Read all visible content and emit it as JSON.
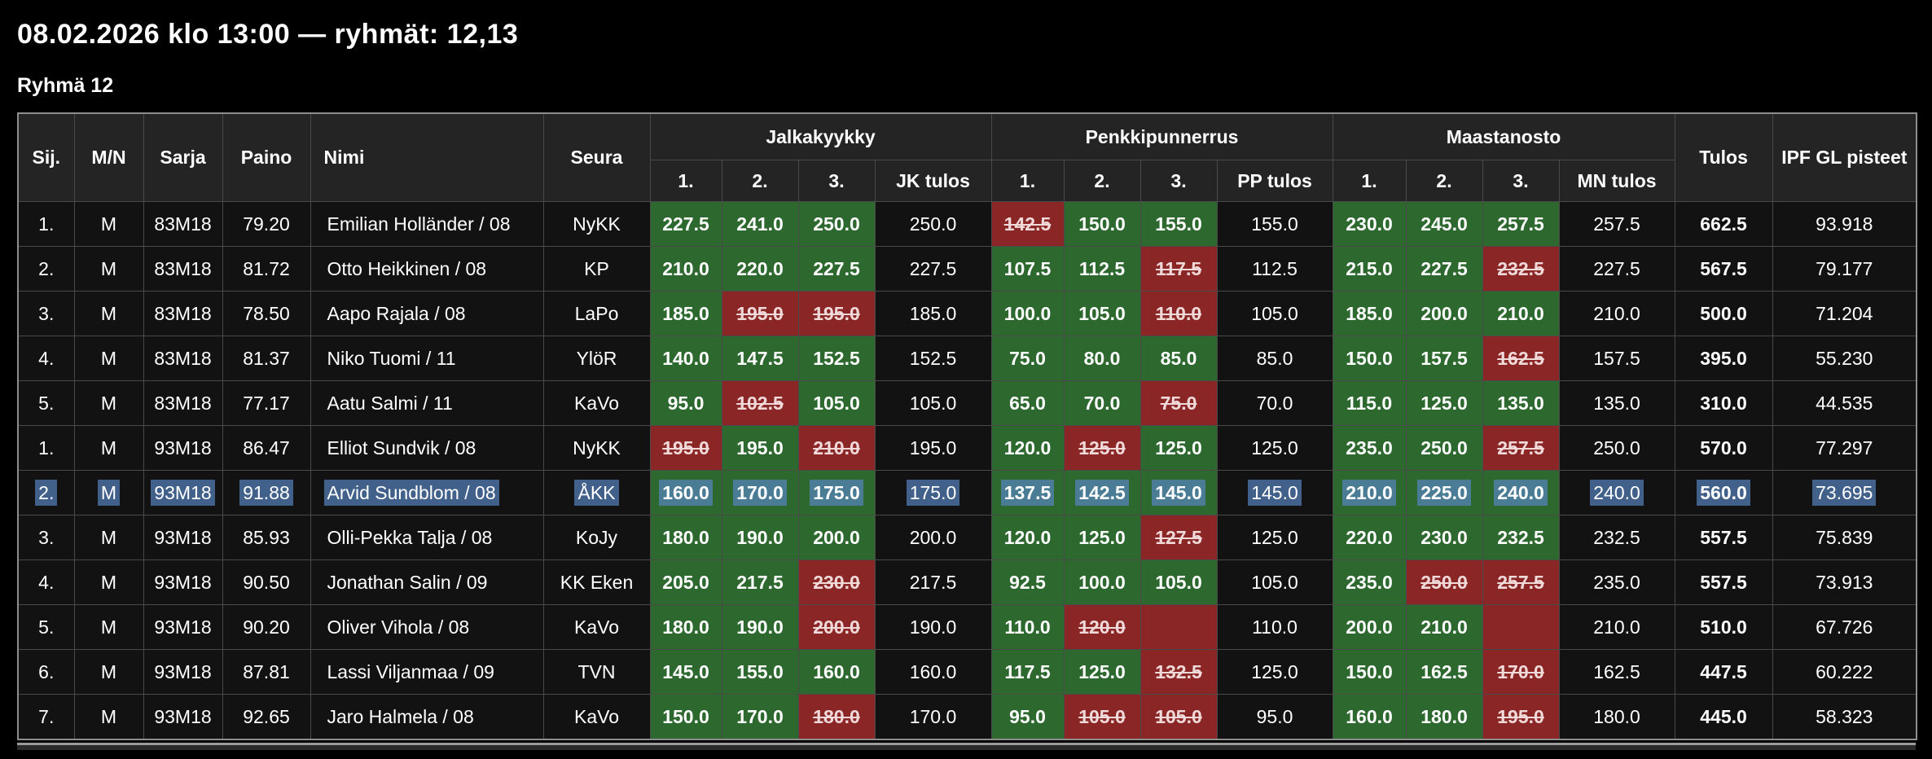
{
  "page": {
    "title_line": "08.02.2026 klo 13:00 — ryhmät: 12,13",
    "group_title": "Ryhmä 12"
  },
  "colors": {
    "good_lift": "#2d682f",
    "failed_lift": "#8b2626",
    "selection_highlight": "#5886c6",
    "header_bg": "#242424",
    "row_bg": "#121212",
    "page_bg": "#000000"
  },
  "table": {
    "groups": {
      "squat": "Jalkakyykky",
      "bench": "Penkkipunnerrus",
      "deadlift": "Maastanosto"
    },
    "headers": {
      "sij": "Sij.",
      "mn": "M/N",
      "sarja": "Sarja",
      "paino": "Paino",
      "nimi": "Nimi",
      "seura": "Seura",
      "a1": "1.",
      "a2": "2.",
      "a3": "3.",
      "jk_result": "JK tulos",
      "pp_result": "PP tulos",
      "mn_result": "MN tulos",
      "tulos": "Tulos",
      "ipf": "IPF GL pisteet"
    },
    "rows": [
      {
        "sij": "1.",
        "gender": "M",
        "sarja": "83M18",
        "paino": "79.20",
        "nimi": "Emilian Holländer / 08",
        "seura": "NyKK",
        "selected": false,
        "squat": {
          "attempts": [
            {
              "v": "227.5",
              "ok": true
            },
            {
              "v": "241.0",
              "ok": true
            },
            {
              "v": "250.0",
              "ok": true
            }
          ],
          "result": "250.0"
        },
        "bench": {
          "attempts": [
            {
              "v": "142.5",
              "ok": false
            },
            {
              "v": "150.0",
              "ok": true
            },
            {
              "v": "155.0",
              "ok": true
            }
          ],
          "result": "155.0"
        },
        "deadlift": {
          "attempts": [
            {
              "v": "230.0",
              "ok": true
            },
            {
              "v": "245.0",
              "ok": true
            },
            {
              "v": "257.5",
              "ok": true
            }
          ],
          "result": "257.5"
        },
        "tulos": "662.5",
        "ipf": "93.918"
      },
      {
        "sij": "2.",
        "gender": "M",
        "sarja": "83M18",
        "paino": "81.72",
        "nimi": "Otto Heikkinen / 08",
        "seura": "KP",
        "selected": false,
        "squat": {
          "attempts": [
            {
              "v": "210.0",
              "ok": true
            },
            {
              "v": "220.0",
              "ok": true
            },
            {
              "v": "227.5",
              "ok": true
            }
          ],
          "result": "227.5"
        },
        "bench": {
          "attempts": [
            {
              "v": "107.5",
              "ok": true
            },
            {
              "v": "112.5",
              "ok": true
            },
            {
              "v": "117.5",
              "ok": false
            }
          ],
          "result": "112.5"
        },
        "deadlift": {
          "attempts": [
            {
              "v": "215.0",
              "ok": true
            },
            {
              "v": "227.5",
              "ok": true
            },
            {
              "v": "232.5",
              "ok": false
            }
          ],
          "result": "227.5"
        },
        "tulos": "567.5",
        "ipf": "79.177"
      },
      {
        "sij": "3.",
        "gender": "M",
        "sarja": "83M18",
        "paino": "78.50",
        "nimi": "Aapo Rajala / 08",
        "seura": "LaPo",
        "selected": false,
        "squat": {
          "attempts": [
            {
              "v": "185.0",
              "ok": true
            },
            {
              "v": "195.0",
              "ok": false
            },
            {
              "v": "195.0",
              "ok": false
            }
          ],
          "result": "185.0"
        },
        "bench": {
          "attempts": [
            {
              "v": "100.0",
              "ok": true
            },
            {
              "v": "105.0",
              "ok": true
            },
            {
              "v": "110.0",
              "ok": false
            }
          ],
          "result": "105.0"
        },
        "deadlift": {
          "attempts": [
            {
              "v": "185.0",
              "ok": true
            },
            {
              "v": "200.0",
              "ok": true
            },
            {
              "v": "210.0",
              "ok": true
            }
          ],
          "result": "210.0"
        },
        "tulos": "500.0",
        "ipf": "71.204"
      },
      {
        "sij": "4.",
        "gender": "M",
        "sarja": "83M18",
        "paino": "81.37",
        "nimi": "Niko Tuomi / 11",
        "seura": "YlöR",
        "selected": false,
        "squat": {
          "attempts": [
            {
              "v": "140.0",
              "ok": true
            },
            {
              "v": "147.5",
              "ok": true
            },
            {
              "v": "152.5",
              "ok": true
            }
          ],
          "result": "152.5"
        },
        "bench": {
          "attempts": [
            {
              "v": "75.0",
              "ok": true
            },
            {
              "v": "80.0",
              "ok": true
            },
            {
              "v": "85.0",
              "ok": true
            }
          ],
          "result": "85.0"
        },
        "deadlift": {
          "attempts": [
            {
              "v": "150.0",
              "ok": true
            },
            {
              "v": "157.5",
              "ok": true
            },
            {
              "v": "162.5",
              "ok": false
            }
          ],
          "result": "157.5"
        },
        "tulos": "395.0",
        "ipf": "55.230"
      },
      {
        "sij": "5.",
        "gender": "M",
        "sarja": "83M18",
        "paino": "77.17",
        "nimi": "Aatu Salmi / 11",
        "seura": "KaVo",
        "selected": false,
        "squat": {
          "attempts": [
            {
              "v": "95.0",
              "ok": true
            },
            {
              "v": "102.5",
              "ok": false
            },
            {
              "v": "105.0",
              "ok": true
            }
          ],
          "result": "105.0"
        },
        "bench": {
          "attempts": [
            {
              "v": "65.0",
              "ok": true
            },
            {
              "v": "70.0",
              "ok": true
            },
            {
              "v": "75.0",
              "ok": false
            }
          ],
          "result": "70.0"
        },
        "deadlift": {
          "attempts": [
            {
              "v": "115.0",
              "ok": true
            },
            {
              "v": "125.0",
              "ok": true
            },
            {
              "v": "135.0",
              "ok": true
            }
          ],
          "result": "135.0"
        },
        "tulos": "310.0",
        "ipf": "44.535"
      },
      {
        "sij": "1.",
        "gender": "M",
        "sarja": "93M18",
        "paino": "86.47",
        "nimi": "Elliot Sundvik / 08",
        "seura": "NyKK",
        "selected": false,
        "squat": {
          "attempts": [
            {
              "v": "195.0",
              "ok": false
            },
            {
              "v": "195.0",
              "ok": true
            },
            {
              "v": "210.0",
              "ok": false
            }
          ],
          "result": "195.0"
        },
        "bench": {
          "attempts": [
            {
              "v": "120.0",
              "ok": true
            },
            {
              "v": "125.0",
              "ok": false
            },
            {
              "v": "125.0",
              "ok": true
            }
          ],
          "result": "125.0"
        },
        "deadlift": {
          "attempts": [
            {
              "v": "235.0",
              "ok": true
            },
            {
              "v": "250.0",
              "ok": true
            },
            {
              "v": "257.5",
              "ok": false
            }
          ],
          "result": "250.0"
        },
        "tulos": "570.0",
        "ipf": "77.297"
      },
      {
        "sij": "2.",
        "gender": "M",
        "sarja": "93M18",
        "paino": "91.88",
        "nimi": "Arvid Sundblom / 08",
        "seura": "ÅKK",
        "selected": true,
        "squat": {
          "attempts": [
            {
              "v": "160.0",
              "ok": true
            },
            {
              "v": "170.0",
              "ok": true
            },
            {
              "v": "175.0",
              "ok": true
            }
          ],
          "result": "175.0"
        },
        "bench": {
          "attempts": [
            {
              "v": "137.5",
              "ok": true
            },
            {
              "v": "142.5",
              "ok": true
            },
            {
              "v": "145.0",
              "ok": true
            }
          ],
          "result": "145.0"
        },
        "deadlift": {
          "attempts": [
            {
              "v": "210.0",
              "ok": true
            },
            {
              "v": "225.0",
              "ok": true
            },
            {
              "v": "240.0",
              "ok": true
            }
          ],
          "result": "240.0"
        },
        "tulos": "560.0",
        "ipf": "73.695"
      },
      {
        "sij": "3.",
        "gender": "M",
        "sarja": "93M18",
        "paino": "85.93",
        "nimi": "Olli-Pekka Talja / 08",
        "seura": "KoJy",
        "selected": false,
        "squat": {
          "attempts": [
            {
              "v": "180.0",
              "ok": true
            },
            {
              "v": "190.0",
              "ok": true
            },
            {
              "v": "200.0",
              "ok": true
            }
          ],
          "result": "200.0"
        },
        "bench": {
          "attempts": [
            {
              "v": "120.0",
              "ok": true
            },
            {
              "v": "125.0",
              "ok": true
            },
            {
              "v": "127.5",
              "ok": false
            }
          ],
          "result": "125.0"
        },
        "deadlift": {
          "attempts": [
            {
              "v": "220.0",
              "ok": true
            },
            {
              "v": "230.0",
              "ok": true
            },
            {
              "v": "232.5",
              "ok": true
            }
          ],
          "result": "232.5"
        },
        "tulos": "557.5",
        "ipf": "75.839"
      },
      {
        "sij": "4.",
        "gender": "M",
        "sarja": "93M18",
        "paino": "90.50",
        "nimi": "Jonathan Salin / 09",
        "seura": "KK Eken",
        "selected": false,
        "squat": {
          "attempts": [
            {
              "v": "205.0",
              "ok": true
            },
            {
              "v": "217.5",
              "ok": true
            },
            {
              "v": "230.0",
              "ok": false
            }
          ],
          "result": "217.5"
        },
        "bench": {
          "attempts": [
            {
              "v": "92.5",
              "ok": true
            },
            {
              "v": "100.0",
              "ok": true
            },
            {
              "v": "105.0",
              "ok": true
            }
          ],
          "result": "105.0"
        },
        "deadlift": {
          "attempts": [
            {
              "v": "235.0",
              "ok": true
            },
            {
              "v": "250.0",
              "ok": false
            },
            {
              "v": "257.5",
              "ok": false
            }
          ],
          "result": "235.0"
        },
        "tulos": "557.5",
        "ipf": "73.913"
      },
      {
        "sij": "5.",
        "gender": "M",
        "sarja": "93M18",
        "paino": "90.20",
        "nimi": "Oliver Vihola / 08",
        "seura": "KaVo",
        "selected": false,
        "squat": {
          "attempts": [
            {
              "v": "180.0",
              "ok": true
            },
            {
              "v": "190.0",
              "ok": true
            },
            {
              "v": "200.0",
              "ok": false
            }
          ],
          "result": "190.0"
        },
        "bench": {
          "attempts": [
            {
              "v": "110.0",
              "ok": true
            },
            {
              "v": "120.0",
              "ok": false
            },
            {
              "v": "",
              "ok": false
            }
          ],
          "result": "110.0"
        },
        "deadlift": {
          "attempts": [
            {
              "v": "200.0",
              "ok": true
            },
            {
              "v": "210.0",
              "ok": true
            },
            {
              "v": "",
              "ok": false
            }
          ],
          "result": "210.0"
        },
        "tulos": "510.0",
        "ipf": "67.726"
      },
      {
        "sij": "6.",
        "gender": "M",
        "sarja": "93M18",
        "paino": "87.81",
        "nimi": "Lassi Viljanmaa / 09",
        "seura": "TVN",
        "selected": false,
        "squat": {
          "attempts": [
            {
              "v": "145.0",
              "ok": true
            },
            {
              "v": "155.0",
              "ok": true
            },
            {
              "v": "160.0",
              "ok": true
            }
          ],
          "result": "160.0"
        },
        "bench": {
          "attempts": [
            {
              "v": "117.5",
              "ok": true
            },
            {
              "v": "125.0",
              "ok": true
            },
            {
              "v": "132.5",
              "ok": false
            }
          ],
          "result": "125.0"
        },
        "deadlift": {
          "attempts": [
            {
              "v": "150.0",
              "ok": true
            },
            {
              "v": "162.5",
              "ok": true
            },
            {
              "v": "170.0",
              "ok": false
            }
          ],
          "result": "162.5"
        },
        "tulos": "447.5",
        "ipf": "60.222"
      },
      {
        "sij": "7.",
        "gender": "M",
        "sarja": "93M18",
        "paino": "92.65",
        "nimi": "Jaro Halmela / 08",
        "seura": "KaVo",
        "selected": false,
        "squat": {
          "attempts": [
            {
              "v": "150.0",
              "ok": true
            },
            {
              "v": "170.0",
              "ok": true
            },
            {
              "v": "180.0",
              "ok": false
            }
          ],
          "result": "170.0"
        },
        "bench": {
          "attempts": [
            {
              "v": "95.0",
              "ok": true
            },
            {
              "v": "105.0",
              "ok": false
            },
            {
              "v": "105.0",
              "ok": false
            }
          ],
          "result": "95.0"
        },
        "deadlift": {
          "attempts": [
            {
              "v": "160.0",
              "ok": true
            },
            {
              "v": "180.0",
              "ok": true
            },
            {
              "v": "195.0",
              "ok": false
            }
          ],
          "result": "180.0"
        },
        "tulos": "445.0",
        "ipf": "58.323"
      }
    ]
  }
}
